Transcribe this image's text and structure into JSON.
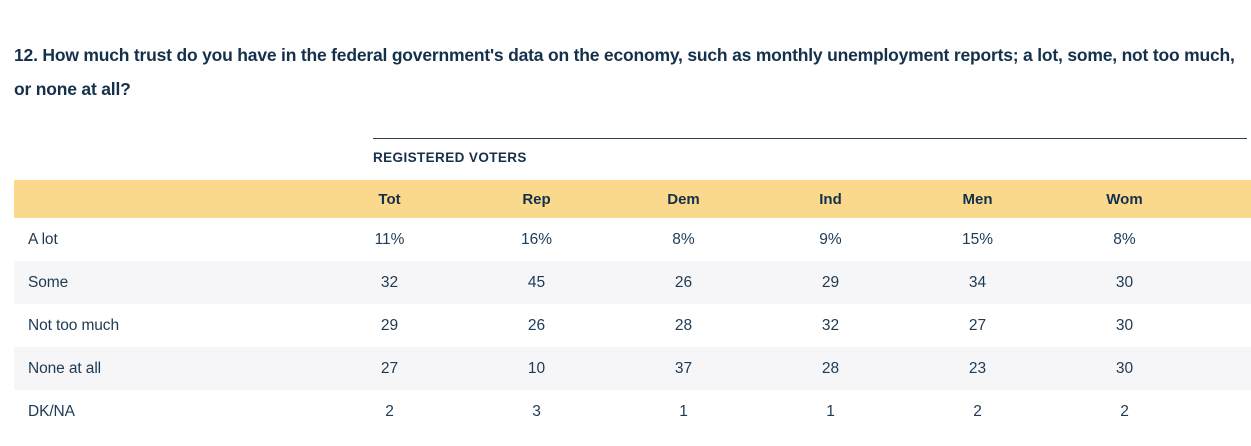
{
  "question": {
    "number_and_text": "12. How much trust do you have in the federal government's data on the economy, such as monthly unemployment reports; a lot, some, not too much, or none at all?"
  },
  "table": {
    "group_label": "REGISTERED VOTERS",
    "columns": [
      "Tot",
      "Rep",
      "Dem",
      "Ind",
      "Men",
      "Wom"
    ],
    "rows": [
      {
        "label": "A lot",
        "values": [
          "11%",
          "16%",
          "8%",
          "9%",
          "15%",
          "8%"
        ]
      },
      {
        "label": "Some",
        "values": [
          "32",
          "45",
          "26",
          "29",
          "34",
          "30"
        ]
      },
      {
        "label": "Not too much",
        "values": [
          "29",
          "26",
          "28",
          "32",
          "27",
          "30"
        ]
      },
      {
        "label": "None at all",
        "values": [
          "27",
          "10",
          "37",
          "28",
          "23",
          "30"
        ]
      },
      {
        "label": "DK/NA",
        "values": [
          "2",
          "3",
          "1",
          "1",
          "2",
          "2"
        ]
      }
    ]
  },
  "chart_data": {
    "type": "table",
    "title": "12. How much trust do you have in the federal government's data on the economy, such as monthly unemployment reports; a lot, some, not too much, or none at all?",
    "group": "REGISTERED VOTERS",
    "categories": [
      "Tot",
      "Rep",
      "Dem",
      "Ind",
      "Men",
      "Wom"
    ],
    "series": [
      {
        "name": "A lot",
        "values": [
          11,
          16,
          8,
          9,
          15,
          8
        ]
      },
      {
        "name": "Some",
        "values": [
          32,
          45,
          26,
          29,
          34,
          30
        ]
      },
      {
        "name": "Not too much",
        "values": [
          29,
          26,
          28,
          32,
          27,
          30
        ]
      },
      {
        "name": "None at all",
        "values": [
          27,
          10,
          37,
          28,
          23,
          30
        ]
      },
      {
        "name": "DK/NA",
        "values": [
          2,
          3,
          1,
          1,
          2,
          2
        ]
      }
    ]
  },
  "colors": {
    "header_band": "#FAD98D",
    "alt_row": "#F6F6F8",
    "navy_text": "#14304A"
  }
}
